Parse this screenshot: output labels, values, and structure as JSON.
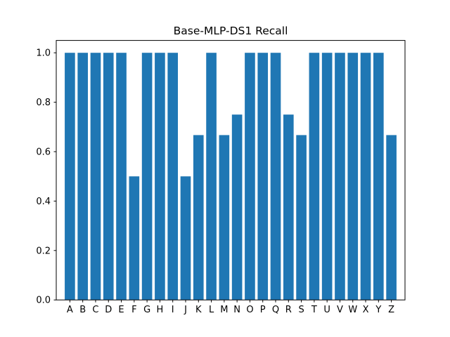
{
  "chart_data": {
    "type": "bar",
    "title": "Base-MLP-DS1 Recall",
    "xlabel": "",
    "ylabel": "",
    "categories": [
      "A",
      "B",
      "C",
      "D",
      "E",
      "F",
      "G",
      "H",
      "I",
      "J",
      "K",
      "L",
      "M",
      "N",
      "O",
      "P",
      "Q",
      "R",
      "S",
      "T",
      "U",
      "V",
      "W",
      "X",
      "Y",
      "Z"
    ],
    "values": [
      1.0,
      1.0,
      1.0,
      1.0,
      1.0,
      0.5,
      1.0,
      1.0,
      1.0,
      0.5,
      0.667,
      1.0,
      0.667,
      0.75,
      1.0,
      1.0,
      1.0,
      0.75,
      0.667,
      1.0,
      1.0,
      1.0,
      1.0,
      1.0,
      1.0,
      0.667
    ],
    "ylim": [
      0,
      1.05
    ],
    "yticks": [
      "0.0",
      "0.2",
      "0.4",
      "0.6",
      "0.8",
      "1.0"
    ],
    "bar_color": "#1f77b4",
    "grid": false,
    "legend": "none"
  }
}
